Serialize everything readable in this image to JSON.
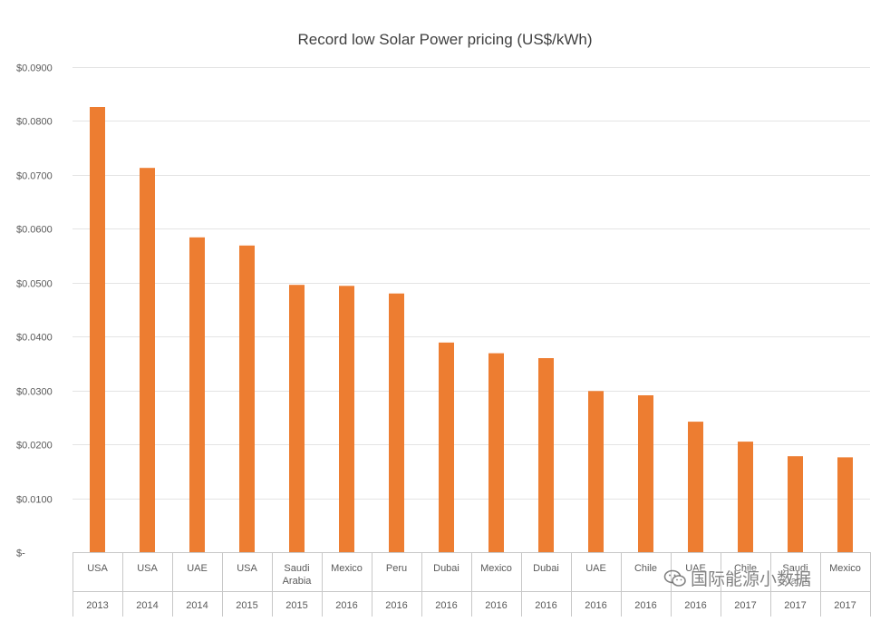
{
  "chart_data": {
    "type": "bar",
    "title": "Record low Solar Power pricing (US$/kWh)",
    "ylim": [
      0,
      0.09
    ],
    "ytick_values": [
      0,
      0.01,
      0.02,
      0.03,
      0.04,
      0.05,
      0.06,
      0.07,
      0.08,
      0.09
    ],
    "ytick_labels": [
      "$-",
      "$0.0100",
      "$0.0200",
      "$0.0300",
      "$0.0400",
      "$0.0500",
      "$0.0600",
      "$0.0700",
      "$0.0800",
      "$0.0900"
    ],
    "grid": true,
    "legend": "none",
    "bar_color": "#ed7d31",
    "categories": [
      {
        "country": "USA",
        "year": "2013"
      },
      {
        "country": "USA",
        "year": "2014"
      },
      {
        "country": "UAE",
        "year": "2014"
      },
      {
        "country": "USA",
        "year": "2015"
      },
      {
        "country": "Saudi Arabia",
        "year": "2015"
      },
      {
        "country": "Mexico",
        "year": "2016"
      },
      {
        "country": "Peru",
        "year": "2016"
      },
      {
        "country": "Dubai",
        "year": "2016"
      },
      {
        "country": "Mexico",
        "year": "2016"
      },
      {
        "country": "Dubai",
        "year": "2016"
      },
      {
        "country": "UAE",
        "year": "2016"
      },
      {
        "country": "Chile",
        "year": "2016"
      },
      {
        "country": "UAE",
        "year": "2016"
      },
      {
        "country": "Chile",
        "year": "2017"
      },
      {
        "country": "Saudi Arabia",
        "year": "2017"
      },
      {
        "country": "Mexico",
        "year": "2017"
      }
    ],
    "values": [
      0.0826,
      0.0713,
      0.0584,
      0.0569,
      0.0496,
      0.0494,
      0.048,
      0.0389,
      0.0369,
      0.036,
      0.0299,
      0.0291,
      0.0242,
      0.0205,
      0.0178,
      0.0176
    ]
  },
  "watermark": {
    "icon": "wechat-icon",
    "text": "国际能源小数据"
  }
}
